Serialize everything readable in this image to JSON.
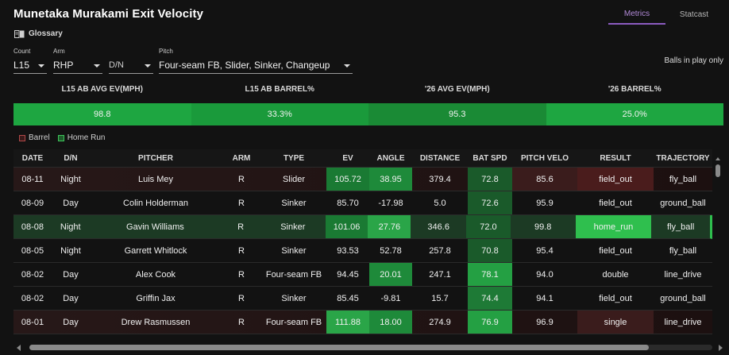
{
  "title": "Munetaka Murakami Exit Velocity",
  "glossary": {
    "label": "Glossary",
    "icon": "book-icon"
  },
  "tabs": [
    {
      "label": "Metrics"
    },
    {
      "label": "Statcast"
    }
  ],
  "filters": {
    "count": {
      "label": "Count",
      "value": "L15"
    },
    "arm": {
      "label": "Arm",
      "value": "RHP"
    },
    "dn": {
      "value": "D/N"
    },
    "pitch": {
      "label": "Pitch",
      "value": "Four-seam FB, Slider, Sinker, Changeup"
    }
  },
  "balls_in_play": "Balls in play only",
  "summary": {
    "headers": [
      "L15 AB AVG EV(MPH)",
      "L15 AB BARREL%",
      "'26 AVG EV(MPH)",
      "'26 BARREL%"
    ],
    "values": [
      "98.8",
      "33.3%",
      "95.3",
      "25.0%"
    ],
    "colors": [
      "#1ea641",
      "#1a9a3b",
      "#1a8a35",
      "#1ea641"
    ]
  },
  "legend": {
    "barrel": "Barrel",
    "home_run": "Home Run"
  },
  "table": {
    "headers": [
      "DATE",
      "D/N",
      "PITCHER",
      "ARM",
      "TYPE",
      "EV",
      "ANGLE",
      "DISTANCE",
      "BAT SPD",
      "PITCH VELO",
      "RESULT",
      "TRAJECTORY"
    ],
    "rows": [
      {
        "kind": "barrel",
        "cells": [
          "08-11",
          "Night",
          "Luis Mey",
          "R",
          "Slider",
          "105.72",
          "38.95",
          "379.4",
          "72.8",
          "85.6",
          "field_out",
          "fly_ball"
        ],
        "colors": [
          "",
          "",
          "",
          "",
          "",
          "#1a7a33",
          "#1e8a3a",
          "",
          "#1a5a2a",
          "#3a1c1c",
          "#4a1c1c",
          ""
        ]
      },
      {
        "kind": "",
        "cells": [
          "08-09",
          "Day",
          "Colin Holderman",
          "R",
          "Sinker",
          "85.70",
          "-17.98",
          "5.0",
          "72.6",
          "95.9",
          "field_out",
          "ground_ball"
        ],
        "colors": [
          "",
          "",
          "",
          "",
          "",
          "",
          "",
          "",
          "#1a5a2a",
          "",
          "",
          ""
        ]
      },
      {
        "kind": "hr",
        "cells": [
          "08-08",
          "Night",
          "Gavin Williams",
          "R",
          "Sinker",
          "101.06",
          "27.76",
          "346.6",
          "72.0",
          "99.8",
          "home_run",
          "fly_ball"
        ],
        "colors": [
          "",
          "",
          "",
          "",
          "",
          "#1a7a33",
          "#2aa548",
          "",
          "#1a5a2a",
          "",
          "#2fbf4e",
          ""
        ]
      },
      {
        "kind": "",
        "cells": [
          "08-05",
          "Night",
          "Garrett Whitlock",
          "R",
          "Sinker",
          "93.53",
          "52.78",
          "257.8",
          "70.8",
          "95.4",
          "field_out",
          "fly_ball"
        ],
        "colors": [
          "",
          "",
          "",
          "",
          "",
          "",
          "",
          "",
          "#1a5a2a",
          "",
          "",
          ""
        ]
      },
      {
        "kind": "",
        "cells": [
          "08-02",
          "Day",
          "Alex Cook",
          "R",
          "Four-seam FB",
          "94.45",
          "20.01",
          "247.1",
          "78.1",
          "94.0",
          "double",
          "line_drive"
        ],
        "colors": [
          "",
          "",
          "",
          "",
          "",
          "",
          "#1e8a3a",
          "",
          "#24a043",
          "",
          "",
          ""
        ]
      },
      {
        "kind": "",
        "cells": [
          "08-02",
          "Day",
          "Griffin Jax",
          "R",
          "Sinker",
          "85.45",
          "-9.81",
          "15.7",
          "74.4",
          "94.1",
          "field_out",
          "ground_ball"
        ],
        "colors": [
          "",
          "",
          "",
          "",
          "",
          "",
          "",
          "",
          "#1e7a36",
          "",
          "",
          ""
        ]
      },
      {
        "kind": "barrel",
        "cells": [
          "08-01",
          "Day",
          "Drew Rasmussen",
          "R",
          "Four-seam FB",
          "111.88",
          "18.00",
          "274.9",
          "76.9",
          "96.9",
          "single",
          "line_drive"
        ],
        "colors": [
          "",
          "",
          "",
          "",
          "",
          "#2aa548",
          "#1e8a3a",
          "",
          "#24a043",
          "",
          "#3a1c1c",
          ""
        ]
      }
    ]
  }
}
